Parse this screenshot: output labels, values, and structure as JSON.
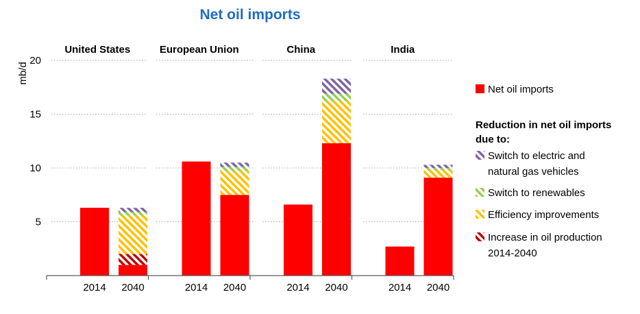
{
  "chart_data": {
    "type": "bar",
    "stacked": true,
    "title": "Net oil imports",
    "ylabel": "mb/d",
    "ylim": [
      0,
      20
    ],
    "yticks": [
      5,
      10,
      15,
      20
    ],
    "grid": true,
    "legend_position": "right",
    "groups": [
      "United States",
      "European Union",
      "China",
      "India"
    ],
    "categories": [
      "2014",
      "2040"
    ],
    "legend_heading": "Reduction in net oil imports due to:",
    "series": [
      {
        "name": "Net oil imports",
        "pattern": "solid",
        "color": "#ff0000",
        "values": [
          [
            6.3,
            1.0
          ],
          [
            10.6,
            7.5
          ],
          [
            6.6,
            12.3
          ],
          [
            2.7,
            9.1
          ]
        ]
      },
      {
        "name": "Increase in oil production 2014-2040",
        "pattern": "hatched",
        "color": "#c00000",
        "values": [
          [
            0,
            1.0
          ],
          [
            0,
            0
          ],
          [
            0,
            0
          ],
          [
            0,
            0
          ]
        ]
      },
      {
        "name": "Efficiency improvements",
        "pattern": "hatched",
        "color": "#ffc000",
        "values": [
          [
            0,
            3.6
          ],
          [
            0,
            2.2
          ],
          [
            0,
            3.9
          ],
          [
            0,
            0.7
          ]
        ]
      },
      {
        "name": "Switch to renewables",
        "pattern": "hatched",
        "color": "#92d050",
        "values": [
          [
            0,
            0.3
          ],
          [
            0,
            0.4
          ],
          [
            0,
            0.7
          ],
          [
            0,
            0.2
          ]
        ]
      },
      {
        "name": "Switch to electric and natural gas vehicles",
        "pattern": "hatched",
        "color": "#8064a2",
        "values": [
          [
            0,
            0.4
          ],
          [
            0,
            0.4
          ],
          [
            0,
            1.4
          ],
          [
            0,
            0.3
          ]
        ]
      }
    ],
    "legend": [
      {
        "label_lines": [
          "Net oil imports"
        ],
        "color": "#ff0000",
        "pattern": "solid"
      },
      {
        "label_lines": [
          "Switch to electric and",
          "natural gas vehicles"
        ],
        "color": "#8064a2",
        "pattern": "hatched"
      },
      {
        "label_lines": [
          "Switch to renewables"
        ],
        "color": "#92d050",
        "pattern": "hatched"
      },
      {
        "label_lines": [
          "Efficiency improvements"
        ],
        "color": "#ffc000",
        "pattern": "hatched"
      },
      {
        "label_lines": [
          "Increase in oil production",
          "2014-2040"
        ],
        "color": "#c00000",
        "pattern": "hatched"
      }
    ],
    "legend_heading_lines": [
      "Reduction in net oil imports",
      "due to:"
    ]
  },
  "colors": {
    "title": "#1f6ebd",
    "grid": "#a6a6a6",
    "axis": "#595959"
  }
}
